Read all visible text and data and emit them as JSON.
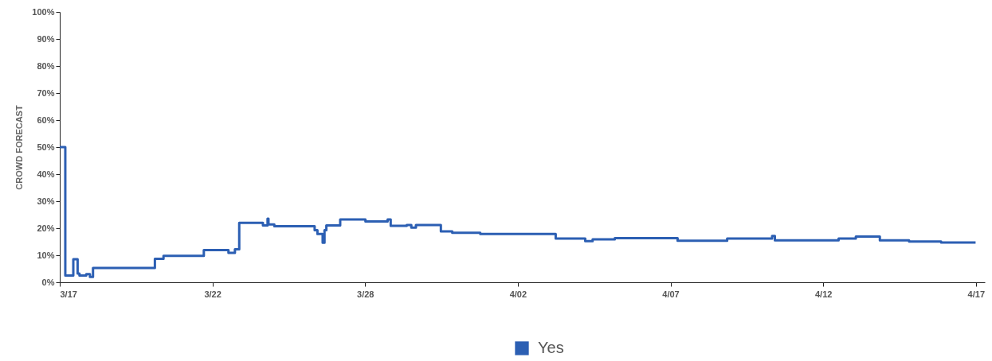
{
  "chart_data": {
    "type": "step",
    "ylabel": "CROWD FORECAST",
    "xlim": [
      "--03-17T16:00",
      "--04-17T23:15"
    ],
    "xticks": [
      {
        "value": "--03-17T16:00",
        "label": "3/17"
      },
      {
        "value": "--03-22T20:00",
        "label": "3/22"
      },
      {
        "value": "--03-28T00:00",
        "label": "3/28"
      },
      {
        "value": "--04-02T04:00",
        "label": "4/02"
      },
      {
        "value": "--04-07T08:00",
        "label": "4/07"
      },
      {
        "value": "--04-12T12:00",
        "label": "4/12"
      },
      {
        "value": "--04-17T16:00",
        "label": "4/17"
      }
    ],
    "ylim": [
      0,
      100
    ],
    "yticks": [
      {
        "value": 0,
        "label": "0%"
      },
      {
        "value": 10,
        "label": "10%"
      },
      {
        "value": 20,
        "label": "20%"
      },
      {
        "value": 30,
        "label": "30%"
      },
      {
        "value": 40,
        "label": "40%"
      },
      {
        "value": 50,
        "label": "50%"
      },
      {
        "value": 60,
        "label": "60%"
      },
      {
        "value": 70,
        "label": "70%"
      },
      {
        "value": 80,
        "label": "80%"
      },
      {
        "value": 90,
        "label": "90%"
      },
      {
        "value": 100,
        "label": "100%"
      }
    ],
    "grid": false,
    "legend": "bottom",
    "marker": "none",
    "line_style": "solid",
    "series": [
      {
        "name": "Yes",
        "color": "#2c5fb3",
        "x": [
          "--03-17T16:00",
          "--03-17T20:30",
          "--03-18T03:00",
          "--03-18T06:30",
          "--03-18T08:00",
          "--03-18T13:30",
          "--03-18T16:30",
          "--03-18T19:00",
          "--03-20T21:15",
          "--03-21T04:15",
          "--03-22T13:00",
          "--03-23T09:00",
          "--03-23T14:15",
          "--03-23T17:45",
          "--03-24T13:00",
          "--03-24T16:45",
          "--03-24T17:30",
          "--03-24T22:15",
          "--03-26T07:00",
          "--03-26T09:15",
          "--03-26T13:30",
          "--03-26T15:00",
          "--03-26T16:30",
          "--03-27T03:45",
          "--03-28T00:15",
          "--03-28T18:15",
          "--03-28T20:45",
          "--03-29T09:45",
          "--03-29T13:30",
          "--03-29T17:15",
          "--03-30T13:30",
          "--03-30T22:45",
          "--03-31T21:30",
          "--04-03T10:45",
          "--04-04T10:45",
          "--04-04T16:45",
          "--04-05T10:45",
          "--04-07T13:45",
          "--04-09T06:00",
          "--04-10T18:30",
          "--04-10T20:45",
          "--04-13T00:30",
          "--04-13T14:30",
          "--04-14T10:00",
          "--04-15T09:45",
          "--04-16T11:45",
          "--04-17T15:45"
        ],
        "values": [
          50,
          2.5,
          8.5,
          3.2,
          2.5,
          3,
          2,
          5.3,
          8.7,
          9.8,
          11.9,
          10.9,
          12.2,
          22,
          21,
          23.5,
          21.4,
          20.7,
          19.3,
          17.9,
          14.6,
          19.3,
          21,
          23.2,
          22.5,
          23.2,
          20.9,
          21.2,
          20.2,
          21.2,
          18.8,
          18.3,
          17.9,
          16.2,
          15.2,
          15.9,
          16.3,
          15.4,
          16.2,
          17.1,
          15.5,
          16.2,
          16.9,
          15.5,
          15.1,
          14.7,
          14.7
        ]
      }
    ]
  }
}
